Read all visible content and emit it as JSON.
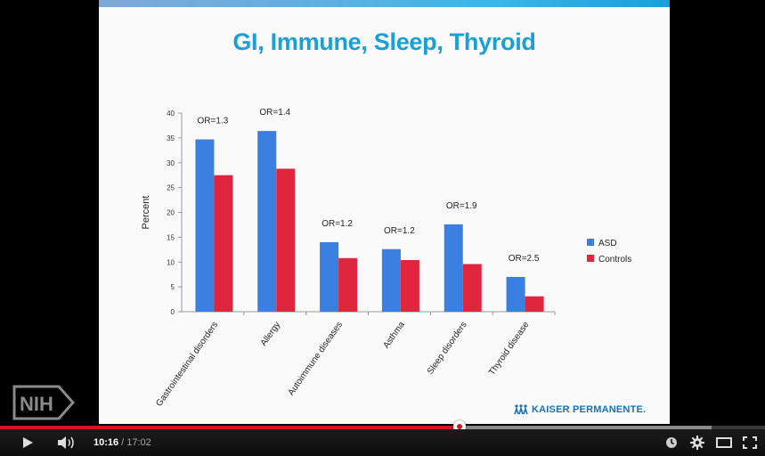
{
  "slide": {
    "title": "GI, Immune, Sleep, Thyroid",
    "logo_text": "KAISER PERMANENTE.",
    "nih_logo_text": "NIH"
  },
  "chart_data": {
    "type": "bar",
    "title": "",
    "xlabel": "",
    "ylabel": "Percent",
    "ylim": [
      0,
      40
    ],
    "yticks": [
      0,
      5,
      10,
      15,
      20,
      25,
      30,
      35,
      40
    ],
    "grid": false,
    "legend_position": "right",
    "categories": [
      "Gastrointestinal disorders",
      "Allergy",
      "Autoimmune diseases",
      "Asthma",
      "Sleep disorders",
      "Thyroid disease"
    ],
    "series": [
      {
        "name": "ASD",
        "color": "#3b7fe0",
        "values": [
          34.7,
          36.4,
          14.0,
          12.6,
          17.6,
          7.0
        ]
      },
      {
        "name": "Controls",
        "color": "#e0263e",
        "values": [
          27.5,
          28.8,
          10.8,
          10.4,
          9.6,
          3.1
        ]
      }
    ],
    "annotations": [
      "OR=1.3",
      "OR=1.4",
      "OR=1.2",
      "OR=1.2",
      "OR=1.9",
      "OR=2.5"
    ]
  },
  "player": {
    "current_time": "10:16",
    "separator": "/",
    "duration": "17:02",
    "played_fraction": 0.601,
    "buffered_fraction": 0.93,
    "colors": {
      "played": "#cc181e",
      "bar_bg": "#3a3a3a"
    },
    "icons": [
      "play-icon",
      "volume-icon",
      "watch-later-icon",
      "settings-icon",
      "theater-mode-icon",
      "fullscreen-icon"
    ]
  }
}
